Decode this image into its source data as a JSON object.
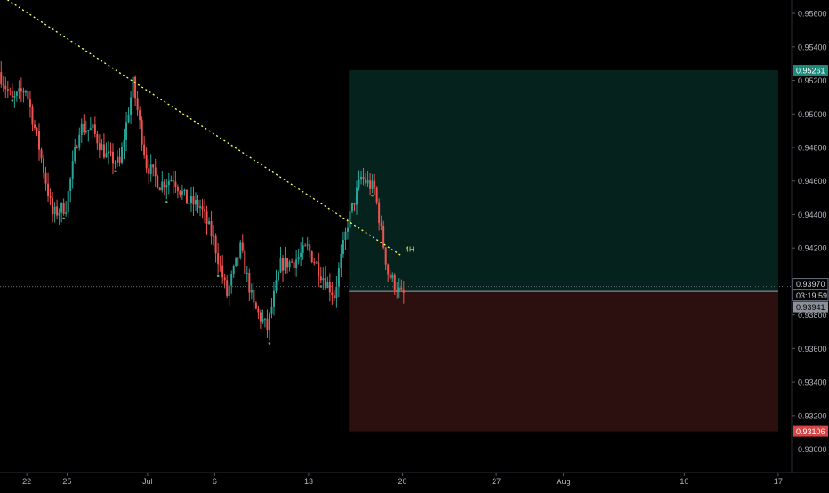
{
  "chart_data": {
    "type": "candlestick",
    "title": "",
    "xlabel": "",
    "ylabel": "",
    "x_ticks": [
      "22",
      "25",
      "Jul",
      "6",
      "13",
      "20",
      "27",
      "Aug",
      "10",
      "17"
    ],
    "y_ticks": [
      "0.95600",
      "0.95400",
      "0.95200",
      "0.95000",
      "0.94800",
      "0.94600",
      "0.94400",
      "0.94200",
      "0.94000",
      "0.93800",
      "0.93600",
      "0.93400",
      "0.93200",
      "0.93000"
    ],
    "ylim": [
      0.9286,
      0.9568
    ],
    "xlim": [
      "2020-06-20",
      "2020-08-18"
    ],
    "grid": false,
    "colors": {
      "up": "#26a69a",
      "down": "#ef5350",
      "trendline": "#ffff66",
      "profit_zone": "#06221c",
      "loss_zone": "#2c1010",
      "price_line": "#5c6b79"
    },
    "trendline": {
      "start": {
        "date": "2020-06-20",
        "price": 0.9571
      },
      "end": {
        "date": "2020-07-20",
        "price": 0.9415
      }
    },
    "position": {
      "entry": 0.93941,
      "take_profit": 0.95261,
      "stop_loss": 0.93106,
      "start_date": "2020-07-16",
      "end_date": "2020-08-17"
    },
    "labels": {
      "current_price": "0.93970",
      "countdown": "03:19:59",
      "entry": "0.93941",
      "take_profit": "0.95261",
      "stop_loss": "0.93106",
      "annotation": "4H"
    },
    "price_path": [
      {
        "date": "2020-06-20",
        "price": 0.9525
      },
      {
        "date": "2020-06-21",
        "price": 0.9508
      },
      {
        "date": "2020-06-22",
        "price": 0.9515
      },
      {
        "date": "2020-06-23",
        "price": 0.948
      },
      {
        "date": "2020-06-24",
        "price": 0.944
      },
      {
        "date": "2020-06-25",
        "price": 0.9445
      },
      {
        "date": "2020-06-26",
        "price": 0.9492
      },
      {
        "date": "2020-06-27",
        "price": 0.949
      },
      {
        "date": "2020-06-28",
        "price": 0.9475
      },
      {
        "date": "2020-06-29",
        "price": 0.947
      },
      {
        "date": "2020-06-30",
        "price": 0.9518
      },
      {
        "date": "2020-07-01",
        "price": 0.947
      },
      {
        "date": "2020-07-02",
        "price": 0.9458
      },
      {
        "date": "2020-07-03",
        "price": 0.9462
      },
      {
        "date": "2020-07-04",
        "price": 0.9448
      },
      {
        "date": "2020-07-05",
        "price": 0.9445
      },
      {
        "date": "2020-07-06",
        "price": 0.9425
      },
      {
        "date": "2020-07-07",
        "price": 0.9392
      },
      {
        "date": "2020-07-08",
        "price": 0.942
      },
      {
        "date": "2020-07-09",
        "price": 0.9385
      },
      {
        "date": "2020-07-10",
        "price": 0.9372
      },
      {
        "date": "2020-07-11",
        "price": 0.941
      },
      {
        "date": "2020-07-12",
        "price": 0.9412
      },
      {
        "date": "2020-07-13",
        "price": 0.942
      },
      {
        "date": "2020-07-14",
        "price": 0.9405
      },
      {
        "date": "2020-07-15",
        "price": 0.9392
      },
      {
        "date": "2020-07-16",
        "price": 0.9435
      },
      {
        "date": "2020-07-17",
        "price": 0.9462
      },
      {
        "date": "2020-07-18",
        "price": 0.9455
      },
      {
        "date": "2020-07-19",
        "price": 0.9405
      },
      {
        "date": "2020-07-20",
        "price": 0.9392
      }
    ]
  }
}
